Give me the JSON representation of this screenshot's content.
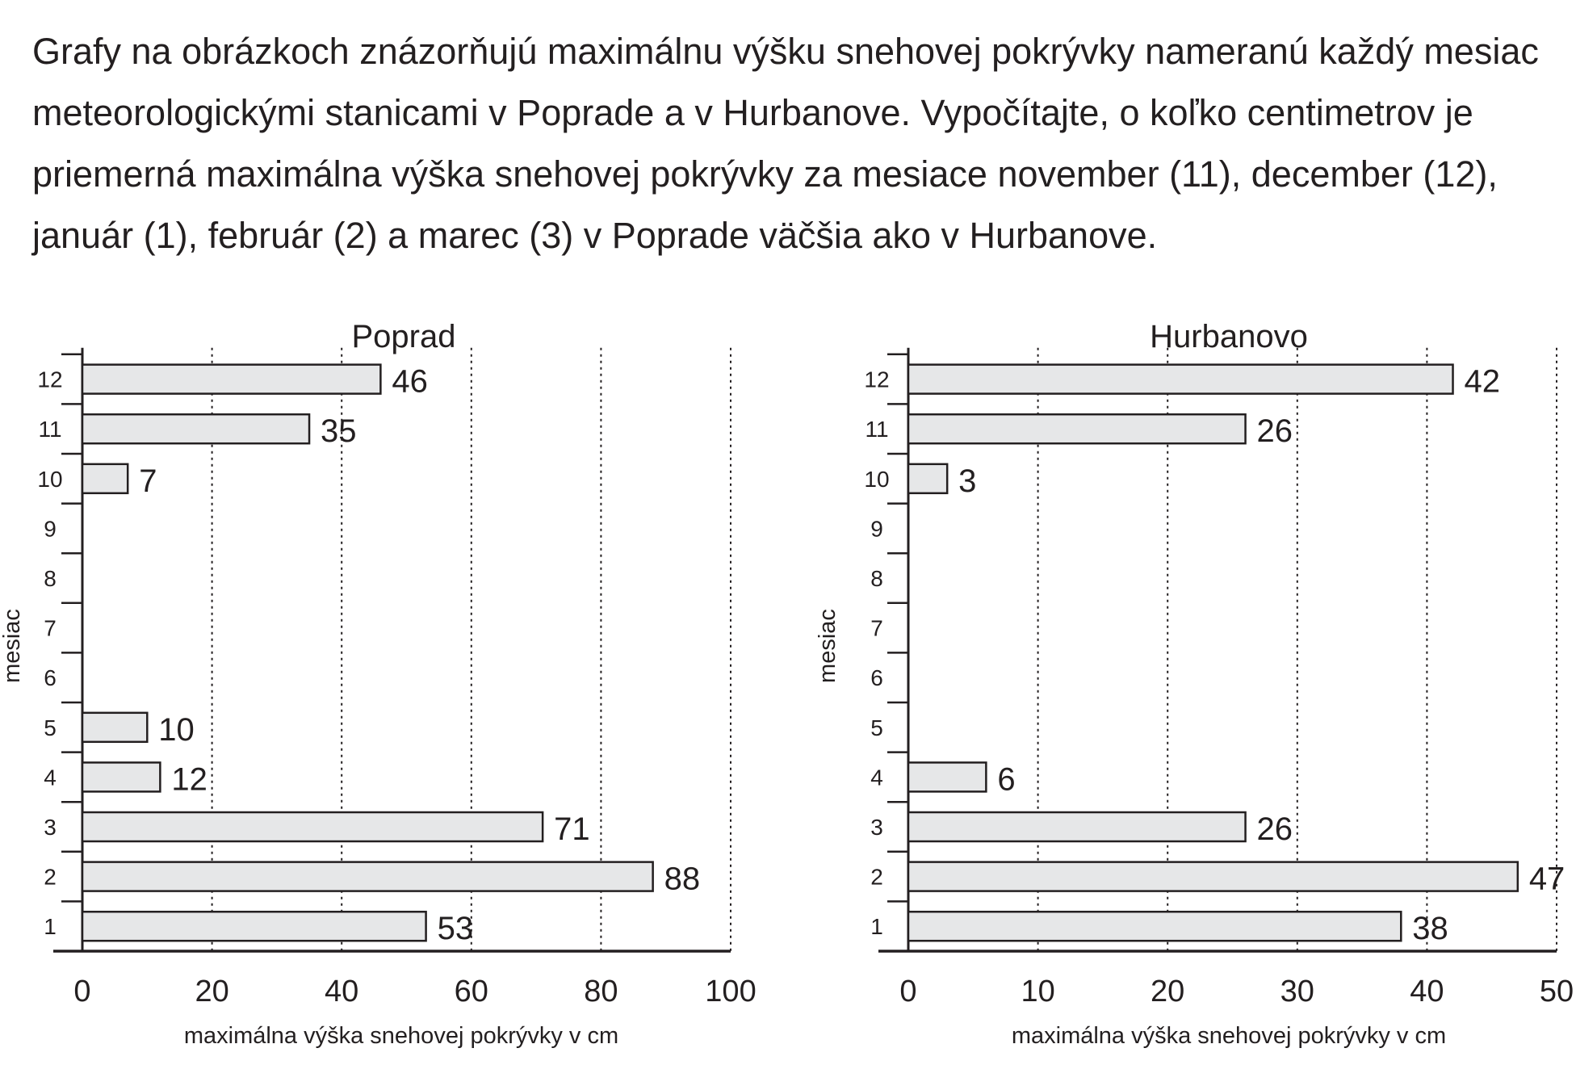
{
  "question": {
    "lines": [
      "Grafy na obrázkoch znázorňujú maximálnu výšku snehovej pokrývky nameranú každý mesiac",
      "meteorologickými stanicami v Poprade a v Hurbanove. Vypočítajte, o koľko centimetrov je",
      "priemerná maximálna výška snehovej pokrývky za mesiace november (11), december (12),",
      "január (1), február (2) a marec (3) v Poprade väčšia ako v Hurbanove."
    ]
  },
  "colors": {
    "bar_fill": "#e6e7e8",
    "stroke": "#231f20"
  },
  "chart_data": [
    {
      "type": "bar",
      "orientation": "horizontal",
      "title": "Poprad",
      "ylabel": "mesiac",
      "xlabel": "maximálna výška snehovej pokrývky v cm",
      "categories": [
        "1",
        "2",
        "3",
        "4",
        "5",
        "6",
        "7",
        "8",
        "9",
        "10",
        "11",
        "12"
      ],
      "values": [
        53,
        88,
        71,
        12,
        10,
        null,
        null,
        null,
        null,
        7,
        35,
        46
      ],
      "value_labels": [
        "53",
        "88",
        "71",
        "12",
        "10",
        "",
        "",
        "",
        "",
        "7",
        "35",
        "46"
      ],
      "xlim": [
        0,
        100
      ],
      "xticks": [
        "0",
        "20",
        "40",
        "60",
        "80",
        "100"
      ],
      "grid": "vertical dotted"
    },
    {
      "type": "bar",
      "orientation": "horizontal",
      "title": "Hurbanovo",
      "ylabel": "mesiac",
      "xlabel": "maximálna výška snehovej pokrývky v cm",
      "categories": [
        "1",
        "2",
        "3",
        "4",
        "5",
        "6",
        "7",
        "8",
        "9",
        "10",
        "11",
        "12"
      ],
      "values": [
        38,
        47,
        26,
        6,
        null,
        null,
        null,
        null,
        null,
        3,
        26,
        42
      ],
      "value_labels": [
        "38",
        "47",
        "26",
        "6",
        "",
        "",
        "",
        "",
        "",
        "3",
        "26",
        "42"
      ],
      "xlim": [
        0,
        50
      ],
      "xticks": [
        "0",
        "10",
        "20",
        "30",
        "40",
        "50"
      ],
      "grid": "vertical dotted"
    }
  ]
}
